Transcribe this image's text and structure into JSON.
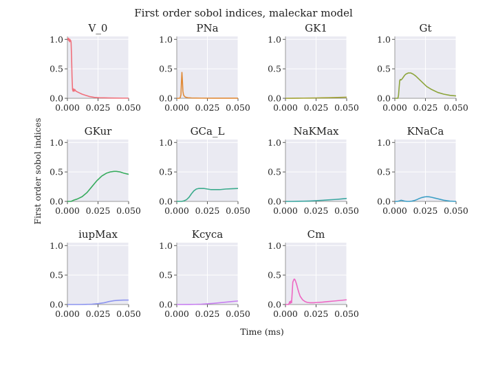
{
  "chart_data": {
    "type": "line",
    "title": "First order sobol indices, maleckar model",
    "xlabel": "Time (ms)",
    "ylabel": "First order sobol indices",
    "xlim": [
      0.0,
      0.05
    ],
    "ylim": [
      0.0,
      1.05
    ],
    "xticks": [
      "0.000",
      "0.025",
      "0.050"
    ],
    "yticks": [
      "0.0",
      "0.5",
      "1.0"
    ],
    "grid": true,
    "panels": [
      {
        "name": "V_0",
        "color": "#f0707b",
        "x": [
          0.0,
          0.0003,
          0.0006,
          0.0009,
          0.0012,
          0.0015,
          0.0018,
          0.0021,
          0.0024,
          0.0027,
          0.003,
          0.0034,
          0.0038,
          0.0042,
          0.0046,
          0.005,
          0.0055,
          0.006,
          0.007,
          0.008,
          0.01,
          0.012,
          0.015,
          0.018,
          0.022,
          0.026,
          0.03,
          0.035,
          0.04,
          0.045,
          0.05
        ],
        "y": [
          1.02,
          1.01,
          0.99,
          1.02,
          0.98,
          1.0,
          0.96,
          1.0,
          0.97,
          0.98,
          0.95,
          0.7,
          0.35,
          0.15,
          0.12,
          0.16,
          0.12,
          0.15,
          0.12,
          0.11,
          0.09,
          0.07,
          0.05,
          0.03,
          0.015,
          0.01,
          0.008,
          0.005,
          0.004,
          0.003,
          0.003
        ]
      },
      {
        "name": "PNa",
        "color": "#e08a37",
        "x": [
          0.0,
          0.002,
          0.0028,
          0.0034,
          0.0038,
          0.0042,
          0.0046,
          0.005,
          0.0055,
          0.006,
          0.007,
          0.009,
          0.012,
          0.016,
          0.02,
          0.03,
          0.04,
          0.05
        ],
        "y": [
          0.0,
          0.0,
          0.01,
          0.06,
          0.28,
          0.44,
          0.3,
          0.12,
          0.06,
          0.04,
          0.02,
          0.01,
          0.006,
          0.004,
          0.003,
          0.002,
          0.002,
          0.002
        ]
      },
      {
        "name": "GK1",
        "color": "#a0a030",
        "x": [
          0.0,
          0.005,
          0.01,
          0.015,
          0.02,
          0.025,
          0.03,
          0.035,
          0.04,
          0.045,
          0.05
        ],
        "y": [
          0.0,
          0.001,
          0.002,
          0.003,
          0.004,
          0.006,
          0.008,
          0.01,
          0.012,
          0.015,
          0.018
        ]
      },
      {
        "name": "Gt",
        "color": "#8ca43a",
        "x": [
          0.0,
          0.0025,
          0.003,
          0.0035,
          0.004,
          0.0045,
          0.005,
          0.006,
          0.007,
          0.008,
          0.009,
          0.01,
          0.011,
          0.012,
          0.013,
          0.014,
          0.015,
          0.017,
          0.02,
          0.023,
          0.026,
          0.03,
          0.035,
          0.04,
          0.045,
          0.05
        ],
        "y": [
          0.0,
          0.0,
          0.05,
          0.18,
          0.3,
          0.32,
          0.31,
          0.33,
          0.36,
          0.39,
          0.41,
          0.42,
          0.43,
          0.43,
          0.43,
          0.42,
          0.41,
          0.38,
          0.32,
          0.26,
          0.2,
          0.15,
          0.1,
          0.07,
          0.05,
          0.04
        ]
      },
      {
        "name": "GKur",
        "color": "#36ab5d",
        "x": [
          0.0,
          0.003,
          0.005,
          0.008,
          0.012,
          0.016,
          0.02,
          0.024,
          0.028,
          0.032,
          0.035,
          0.038,
          0.04,
          0.043,
          0.046,
          0.05
        ],
        "y": [
          0.0,
          0.0,
          0.02,
          0.04,
          0.08,
          0.15,
          0.25,
          0.35,
          0.43,
          0.48,
          0.5,
          0.51,
          0.51,
          0.5,
          0.48,
          0.46
        ]
      },
      {
        "name": "GCa_L",
        "color": "#3aab8c",
        "x": [
          0.0,
          0.004,
          0.006,
          0.008,
          0.01,
          0.012,
          0.014,
          0.016,
          0.018,
          0.02,
          0.022,
          0.025,
          0.028,
          0.031,
          0.035,
          0.04,
          0.045,
          0.05
        ],
        "y": [
          0.0,
          0.0,
          0.01,
          0.03,
          0.07,
          0.13,
          0.18,
          0.21,
          0.22,
          0.22,
          0.22,
          0.21,
          0.2,
          0.2,
          0.2,
          0.21,
          0.215,
          0.22
        ]
      },
      {
        "name": "NaKMax",
        "color": "#3aa6a0",
        "x": [
          0.0,
          0.005,
          0.01,
          0.015,
          0.02,
          0.025,
          0.03,
          0.035,
          0.04,
          0.045,
          0.05
        ],
        "y": [
          0.0,
          0.0,
          0.002,
          0.004,
          0.007,
          0.012,
          0.018,
          0.025,
          0.032,
          0.04,
          0.05
        ]
      },
      {
        "name": "KNaCa",
        "color": "#3d9fc6",
        "x": [
          0.0,
          0.002,
          0.004,
          0.005,
          0.006,
          0.008,
          0.01,
          0.012,
          0.014,
          0.016,
          0.018,
          0.02,
          0.022,
          0.024,
          0.026,
          0.028,
          0.03,
          0.033,
          0.036,
          0.04,
          0.045,
          0.05
        ],
        "y": [
          0.0,
          0.0,
          0.01,
          0.02,
          0.015,
          0.005,
          0.0,
          0.0,
          0.005,
          0.015,
          0.03,
          0.05,
          0.065,
          0.075,
          0.08,
          0.078,
          0.07,
          0.055,
          0.04,
          0.02,
          0.005,
          0.0
        ]
      },
      {
        "name": "iupMax",
        "color": "#8c94ef",
        "x": [
          0.0,
          0.01,
          0.015,
          0.02,
          0.025,
          0.03,
          0.034,
          0.038,
          0.042,
          0.046,
          0.05
        ],
        "y": [
          0.0,
          0.0,
          0.002,
          0.006,
          0.015,
          0.03,
          0.05,
          0.065,
          0.072,
          0.075,
          0.075
        ]
      },
      {
        "name": "Kcyca",
        "color": "#c77ef0",
        "x": [
          0.0,
          0.01,
          0.015,
          0.02,
          0.025,
          0.03,
          0.035,
          0.04,
          0.045,
          0.05
        ],
        "y": [
          0.0,
          0.001,
          0.003,
          0.006,
          0.012,
          0.02,
          0.03,
          0.04,
          0.05,
          0.06
        ]
      },
      {
        "name": "Cm",
        "color": "#ee66c2",
        "x": [
          0.0,
          0.0025,
          0.003,
          0.0035,
          0.004,
          0.0045,
          0.005,
          0.0055,
          0.006,
          0.007,
          0.0075,
          0.008,
          0.009,
          0.01,
          0.011,
          0.012,
          0.014,
          0.016,
          0.018,
          0.02,
          0.023,
          0.026,
          0.03,
          0.035,
          0.04,
          0.045,
          0.05
        ],
        "y": [
          0.0,
          0.0,
          0.02,
          0.05,
          0.02,
          0.06,
          0.03,
          0.2,
          0.38,
          0.43,
          0.43,
          0.41,
          0.35,
          0.27,
          0.2,
          0.14,
          0.08,
          0.05,
          0.035,
          0.03,
          0.03,
          0.035,
          0.04,
          0.05,
          0.06,
          0.07,
          0.08
        ]
      }
    ]
  }
}
